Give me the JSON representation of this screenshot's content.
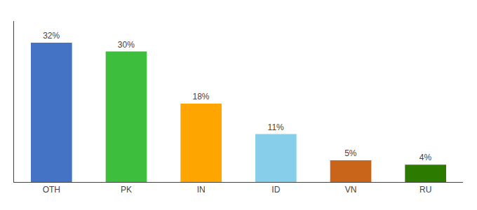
{
  "chart_data": {
    "type": "bar",
    "categories": [
      "OTH",
      "PK",
      "IN",
      "ID",
      "VN",
      "RU"
    ],
    "values": [
      32,
      30,
      18,
      11,
      5,
      4
    ],
    "value_labels": [
      "32%",
      "30%",
      "18%",
      "11%",
      "5%",
      "4%"
    ],
    "colors": [
      "#4472C4",
      "#3DBE3D",
      "#FFA500",
      "#87CEEB",
      "#C8651B",
      "#2D7A00"
    ],
    "data_labels": true,
    "ylim": [
      0,
      37
    ],
    "grid": false,
    "tick_labels": "x"
  }
}
